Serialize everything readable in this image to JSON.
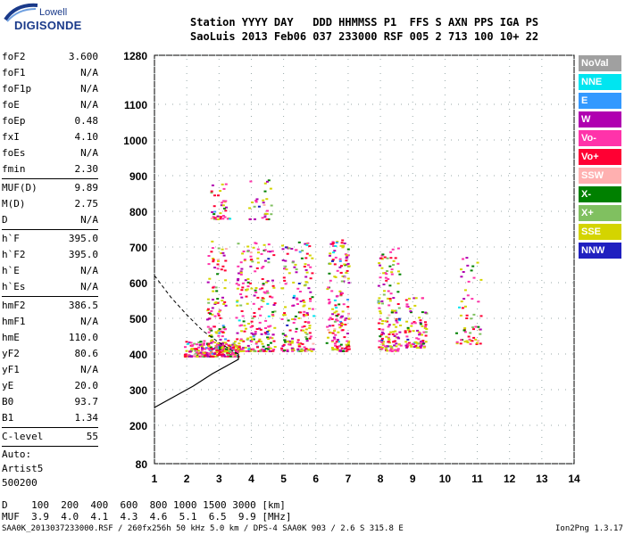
{
  "logo": {
    "line1": "Lowell",
    "line2": "DIGISONDE"
  },
  "header": {
    "row1": "Station YYYY DAY   DDD HHMMSS P1  FFS S AXN PPS IGA PS",
    "row2": "SaoLuis 2013 Feb06 037 233000 RSF 005 2 713 100 10+ 22"
  },
  "params_groups": [
    [
      [
        "foF2",
        "3.600"
      ],
      [
        "foF1",
        "N/A"
      ],
      [
        "foF1p",
        "N/A"
      ],
      [
        "foE",
        "N/A"
      ],
      [
        "foEp",
        "0.48"
      ],
      [
        "fxI",
        "4.10"
      ],
      [
        "foEs",
        "N/A"
      ],
      [
        "fmin",
        "2.30"
      ]
    ],
    [
      [
        "MUF(D)",
        "9.89"
      ],
      [
        "M(D)",
        "2.75"
      ],
      [
        "D",
        "N/A"
      ]
    ],
    [
      [
        "h`F",
        "395.0"
      ],
      [
        "h`F2",
        "395.0"
      ],
      [
        "h`E",
        "N/A"
      ],
      [
        "h`Es",
        "N/A"
      ]
    ],
    [
      [
        "hmF2",
        "386.5"
      ],
      [
        "hmF1",
        "N/A"
      ],
      [
        "hmE",
        "110.0"
      ],
      [
        "yF2",
        "80.6"
      ],
      [
        "yF1",
        "N/A"
      ],
      [
        "yE",
        "20.0"
      ],
      [
        "B0",
        "93.7"
      ],
      [
        "B1",
        "1.34"
      ]
    ],
    [
      [
        "C-level",
        "55"
      ]
    ]
  ],
  "meta": [
    "Auto:",
    "Artist5",
    "500200"
  ],
  "legend": [
    {
      "label": "NoVal",
      "color": "#a0a0a0"
    },
    {
      "label": "NNE",
      "color": "#00e5f0"
    },
    {
      "label": "E",
      "color": "#3399ff"
    },
    {
      "label": "W",
      "color": "#b000b0"
    },
    {
      "label": "Vo-",
      "color": "#ff33aa"
    },
    {
      "label": "Vo+",
      "color": "#ff0033"
    },
    {
      "label": "SSW",
      "color": "#ffb0b0"
    },
    {
      "label": "X-",
      "color": "#008000"
    },
    {
      "label": "X+",
      "color": "#80c060"
    },
    {
      "label": "SSE",
      "color": "#d4d400"
    },
    {
      "label": "NNW",
      "color": "#2020c0"
    }
  ],
  "mufrow": {
    "d": "D    100  200  400  600  800 1000 1500 3000 [km]",
    "m": "MUF  3.9  4.0  4.1  4.3  4.6  5.1  6.5  9.9 [MHz]"
  },
  "footer": {
    "left": "SAA0K_2013037233000.RSF / 260fx256h 50 kHz 5.0 km / DPS-4 SAA0K 903 / 2.6 S 315.8 E",
    "right": "Ion2Png 1.3.17"
  },
  "chart_data": {
    "type": "scatter",
    "x_ticks": [
      "1",
      "2",
      "3",
      "4",
      "5",
      "6",
      "7",
      "8",
      "9",
      "10",
      "11",
      "12",
      "13",
      "14"
    ],
    "y_ticks": [
      "80",
      "200",
      "300",
      "400",
      "500",
      "600",
      "700",
      "800",
      "900",
      "1000",
      "1100",
      "1280"
    ],
    "xlim": [
      1,
      14
    ],
    "ylim": [
      80,
      1280
    ],
    "grid": true,
    "profile_curve": [
      [
        1,
        250
      ],
      [
        1.6,
        280
      ],
      [
        2.2,
        310
      ],
      [
        2.8,
        345
      ],
      [
        3.3,
        370
      ],
      [
        3.6,
        385
      ],
      [
        3.6,
        400
      ]
    ],
    "x_trace": [
      [
        1,
        620
      ],
      [
        1.5,
        560
      ],
      [
        2,
        510
      ],
      [
        2.5,
        465
      ],
      [
        3,
        432
      ],
      [
        3.4,
        410
      ],
      [
        3.6,
        400
      ]
    ],
    "echo_clusters": [
      {
        "x": [
          1.9,
          3.6
        ],
        "y": [
          395,
          440
        ],
        "n": 260
      },
      {
        "x": [
          2.6,
          3.2
        ],
        "y": [
          400,
          720
        ],
        "n": 120
      },
      {
        "x": [
          3.5,
          4.7
        ],
        "y": [
          410,
          720
        ],
        "n": 230
      },
      {
        "x": [
          4.9,
          5.9
        ],
        "y": [
          410,
          720
        ],
        "n": 180
      },
      {
        "x": [
          6.3,
          7.0
        ],
        "y": [
          410,
          730
        ],
        "n": 170
      },
      {
        "x": [
          7.9,
          8.6
        ],
        "y": [
          410,
          700
        ],
        "n": 150
      },
      {
        "x": [
          8.7,
          9.4
        ],
        "y": [
          420,
          560
        ],
        "n": 90
      },
      {
        "x": [
          10.3,
          11.1
        ],
        "y": [
          430,
          680
        ],
        "n": 60
      },
      {
        "x": [
          2.7,
          3.3
        ],
        "y": [
          780,
          880
        ],
        "n": 40
      },
      {
        "x": [
          3.9,
          4.6
        ],
        "y": [
          780,
          900
        ],
        "n": 30
      }
    ]
  }
}
